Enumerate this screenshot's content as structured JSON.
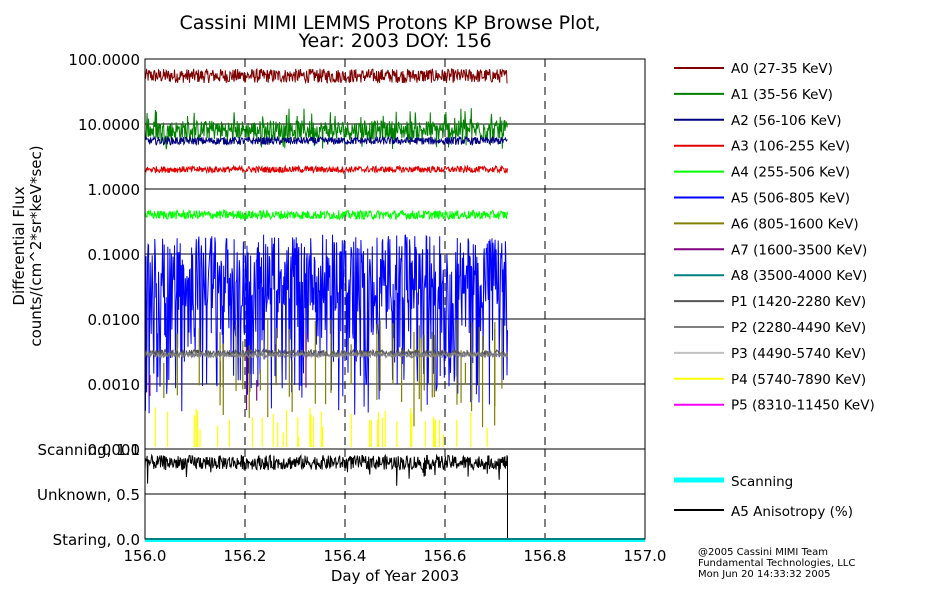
{
  "title_line1": "Cassini MIMI LEMMS Protons KP Browse Plot,",
  "title_line2": "Year: 2003 DOY: 156",
  "footer": {
    "line1": "@2005 Cassini MIMI Team",
    "line2": "Fundamental Technologies, LLC",
    "line3": "Mon Jun 20 14:33:32 2005"
  },
  "chart_data": [
    {
      "type": "line",
      "panel": "flux",
      "ylabel_line1": "Differential Flux",
      "ylabel_line2": "counts/(cm^2*sr*keV*sec)",
      "yscale": "log",
      "ylim": [
        0.0001,
        100
      ],
      "xlim": [
        156.0,
        157.0
      ],
      "y_ticks": [
        {
          "value": 100,
          "label": "100.0000"
        },
        {
          "value": 10,
          "label": "10.0000"
        },
        {
          "value": 1,
          "label": "1.0000"
        },
        {
          "value": 0.1,
          "label": "0.1000"
        },
        {
          "value": 0.01,
          "label": "0.0100"
        },
        {
          "value": 0.001,
          "label": "0.0010"
        },
        {
          "value": 0.0001,
          "label": "0.0001"
        }
      ],
      "data_range": [
        156.0,
        156.725
      ],
      "series": [
        {
          "name": "A0 (27-35 KeV)",
          "color": "#800000",
          "level": 55,
          "spread": 0.22,
          "style": "noise"
        },
        {
          "name": "A1 (35-56 KeV)",
          "color": "#008000",
          "level": 7.5,
          "spread": 0.3,
          "style": "spiky"
        },
        {
          "name": "A2 (56-106 KeV)",
          "color": "#000080",
          "level": 5.5,
          "spread": 0.12,
          "style": "noise"
        },
        {
          "name": "A3 (106-255 KeV)",
          "color": "#e00000",
          "level": 2.0,
          "spread": 0.1,
          "style": "noise"
        },
        {
          "name": "A4 (255-506 KeV)",
          "color": "#00ff00",
          "level": 0.4,
          "spread": 0.14,
          "style": "noise"
        },
        {
          "name": "A5 (506-805 KeV)",
          "color": "#0000ff",
          "level": 0.05,
          "spread": 0.35,
          "style": "dropout"
        },
        {
          "name": "A6 (805-1600 KeV)",
          "color": "#808000",
          "level": 0.003,
          "spread": 0.0,
          "style": "sparse"
        },
        {
          "name": "A7 (1600-3500 KeV)",
          "color": "#800080",
          "level": 0.002,
          "spread": 0.0,
          "style": "rare"
        },
        {
          "name": "A8 (3500-4000 KeV)",
          "color": "#008080",
          "level": null,
          "spread": 0.0,
          "style": "none"
        },
        {
          "name": "P1 (1420-2280 KeV)",
          "color": "#555555",
          "level": 0.003,
          "spread": 0.1,
          "style": "noise"
        },
        {
          "name": "P2 (2280-4490 KeV)",
          "color": "#808080",
          "level": 0.0028,
          "spread": 0.08,
          "style": "noise"
        },
        {
          "name": "P3 (4490-5740 KeV)",
          "color": "#c0c0c0",
          "level": null,
          "spread": 0.0,
          "style": "none"
        },
        {
          "name": "P4 (5740-7890 KeV)",
          "color": "#ffff00",
          "level": 0.0002,
          "spread": 0.0,
          "style": "sparse"
        },
        {
          "name": "P5 (8310-11450 KeV)",
          "color": "#ff00ff",
          "level": null,
          "spread": 0.0,
          "style": "none"
        }
      ]
    },
    {
      "type": "line",
      "panel": "status",
      "xlabel": "Day of Year 2003",
      "ylim": [
        0.0,
        1.0
      ],
      "xlim": [
        156.0,
        157.0
      ],
      "x_ticks": [
        "156.0",
        "156.2",
        "156.4",
        "156.6",
        "156.8",
        "157.0"
      ],
      "y_ticks": [
        {
          "value": 1.0,
          "label": "Scanning, 1.0"
        },
        {
          "value": 0.5,
          "label": "Unknown, 0.5"
        },
        {
          "value": 0.0,
          "label": "Staring, 0.0"
        }
      ],
      "series": [
        {
          "name": "Scanning",
          "color": "#00ffff",
          "level": 0.0
        },
        {
          "name": "A5 Anisotropy (%)",
          "color": "#000000",
          "level": 0.85,
          "spread": 0.08
        }
      ]
    }
  ]
}
